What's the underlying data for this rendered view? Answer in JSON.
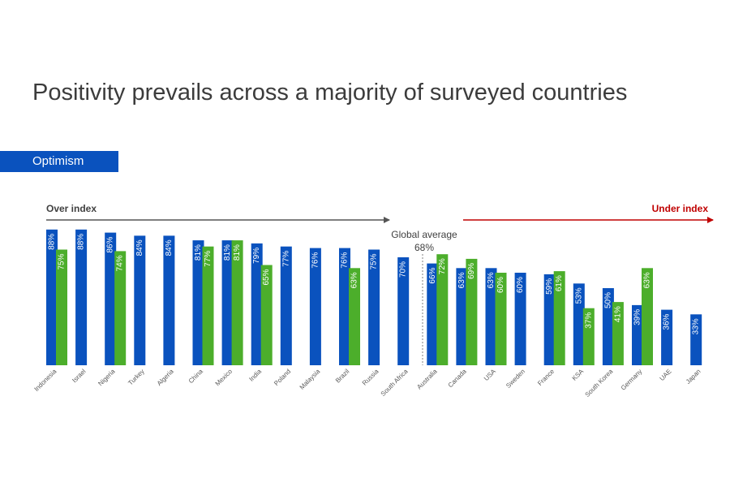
{
  "title": "Positivity prevails across a majority of surveyed countries",
  "tag_label": "Optimism",
  "colors": {
    "blue": "#0a52be",
    "green": "#4cae2b",
    "over_arrow": "#555555",
    "under_arrow": "#c00000",
    "under_text": "#c00000",
    "tag_bg": "#0a52be"
  },
  "chart_data": {
    "type": "bar",
    "ylim": [
      0,
      100
    ],
    "over_index_label": "Over index",
    "under_index_label": "Under index",
    "global_average": {
      "label": "Global average",
      "value_label": "68%",
      "value": 68
    },
    "series": [
      {
        "name": "Blue",
        "color": "#0a52be"
      },
      {
        "name": "Green",
        "color": "#4cae2b"
      }
    ],
    "countries": [
      {
        "name": "Indonesia",
        "blue": 88,
        "blue_label": "88%",
        "green": 75,
        "green_label": "75%"
      },
      {
        "name": "Israel",
        "blue": 88,
        "blue_label": "88%",
        "green": null,
        "green_label": null
      },
      {
        "name": "Nigeria",
        "blue": 86,
        "blue_label": "86%",
        "green": 74,
        "green_label": "74%"
      },
      {
        "name": "Turkey",
        "blue": 84,
        "blue_label": "84%",
        "green": null,
        "green_label": null
      },
      {
        "name": "Algeria",
        "blue": 84,
        "blue_label": "84%",
        "green": null,
        "green_label": null
      },
      {
        "name": "China",
        "blue": 81,
        "blue_label": "81%",
        "green": 77,
        "green_label": "77%"
      },
      {
        "name": "Mexico",
        "blue": 81,
        "blue_label": "81%",
        "green": 81,
        "green_label": "81%"
      },
      {
        "name": "India",
        "blue": 79,
        "blue_label": "79%",
        "green": 65,
        "green_label": "65%"
      },
      {
        "name": "Poland",
        "blue": 77,
        "blue_label": "77%",
        "green": null,
        "green_label": null
      },
      {
        "name": "Malaysia",
        "blue": 76,
        "blue_label": "76%",
        "green": null,
        "green_label": null
      },
      {
        "name": "Brazil",
        "blue": 76,
        "blue_label": "76%",
        "green": 63,
        "green_label": "63%"
      },
      {
        "name": "Russia",
        "blue": 75,
        "blue_label": "75%",
        "green": null,
        "green_label": null
      },
      {
        "name": "South Africa",
        "blue": 70,
        "blue_label": "70%",
        "green": null,
        "green_label": null
      },
      {
        "name": "Australia",
        "blue": 66,
        "blue_label": "66%",
        "green": 72,
        "green_label": "72%"
      },
      {
        "name": "Canada",
        "blue": 63,
        "blue_label": "63%",
        "green": 69,
        "green_label": "69%"
      },
      {
        "name": "USA",
        "blue": 63,
        "blue_label": "63%",
        "green": 60,
        "green_label": "60%"
      },
      {
        "name": "Sweden",
        "blue": 60,
        "blue_label": "60%",
        "green": null,
        "green_label": null
      },
      {
        "name": "France",
        "blue": 59,
        "blue_label": "59%",
        "green": 61,
        "green_label": "61%"
      },
      {
        "name": "KSA",
        "blue": 53,
        "blue_label": "53%",
        "green": 37,
        "green_label": "37%"
      },
      {
        "name": "South Korea",
        "blue": 50,
        "blue_label": "50%",
        "green": 41,
        "green_label": "41%"
      },
      {
        "name": "Germany",
        "blue": 39,
        "blue_label": "39%",
        "green": 63,
        "green_label": "63%"
      },
      {
        "name": "UAE",
        "blue": 36,
        "blue_label": "36%",
        "green": null,
        "green_label": null
      },
      {
        "name": "Japan",
        "blue": 33,
        "blue_label": "33%",
        "green": null,
        "green_label": null
      }
    ]
  }
}
